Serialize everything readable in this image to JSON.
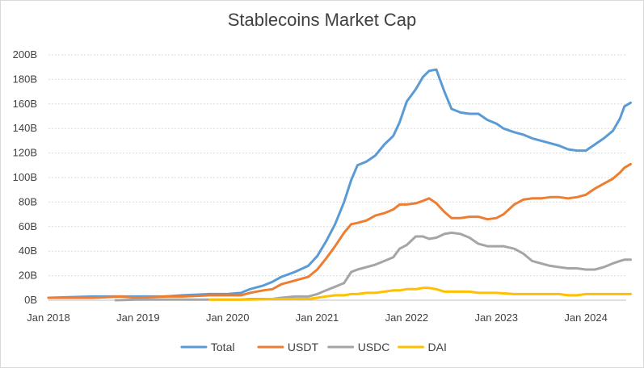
{
  "chart_data": {
    "type": "line",
    "title": "Stablecoins Market Cap",
    "xlabel": "",
    "ylabel": "",
    "ylim": [
      0,
      200
    ],
    "y_ticks": [
      "0B",
      "20B",
      "40B",
      "60B",
      "80B",
      "100B",
      "120B",
      "140B",
      "160B",
      "180B",
      "200B"
    ],
    "y_tick_values": [
      0,
      20,
      40,
      60,
      80,
      100,
      120,
      140,
      160,
      180,
      200
    ],
    "x_ticks": [
      "Jan 2018",
      "Jan 2019",
      "Jan 2020",
      "Jan 2021",
      "Jan 2022",
      "Jan 2023",
      "Jan 2024"
    ],
    "x_tick_values": [
      2018,
      2019,
      2020,
      2021,
      2022,
      2023,
      2024
    ],
    "xlim": [
      2018,
      2024.45
    ],
    "grid": true,
    "legend_position": "bottom",
    "series": [
      {
        "name": "Total",
        "color": "#5b9bd5",
        "points": [
          [
            2018.0,
            2
          ],
          [
            2018.5,
            3
          ],
          [
            2018.8,
            3
          ],
          [
            2019.0,
            3
          ],
          [
            2019.3,
            3
          ],
          [
            2019.5,
            4
          ],
          [
            2019.8,
            5
          ],
          [
            2020.0,
            5
          ],
          [
            2020.15,
            6
          ],
          [
            2020.25,
            9
          ],
          [
            2020.4,
            12
          ],
          [
            2020.5,
            15
          ],
          [
            2020.6,
            19
          ],
          [
            2020.75,
            23
          ],
          [
            2020.9,
            28
          ],
          [
            2021.0,
            36
          ],
          [
            2021.1,
            48
          ],
          [
            2021.2,
            62
          ],
          [
            2021.3,
            80
          ],
          [
            2021.38,
            98
          ],
          [
            2021.45,
            110
          ],
          [
            2021.55,
            113
          ],
          [
            2021.65,
            118
          ],
          [
            2021.75,
            127
          ],
          [
            2021.85,
            134
          ],
          [
            2021.92,
            145
          ],
          [
            2022.0,
            162
          ],
          [
            2022.1,
            172
          ],
          [
            2022.18,
            182
          ],
          [
            2022.25,
            187
          ],
          [
            2022.33,
            188
          ],
          [
            2022.42,
            170
          ],
          [
            2022.5,
            156
          ],
          [
            2022.6,
            153
          ],
          [
            2022.7,
            152
          ],
          [
            2022.8,
            152
          ],
          [
            2022.9,
            147
          ],
          [
            2023.0,
            144
          ],
          [
            2023.08,
            140
          ],
          [
            2023.2,
            137
          ],
          [
            2023.3,
            135
          ],
          [
            2023.4,
            132
          ],
          [
            2023.5,
            130
          ],
          [
            2023.6,
            128
          ],
          [
            2023.7,
            126
          ],
          [
            2023.8,
            123
          ],
          [
            2023.9,
            122
          ],
          [
            2024.0,
            122
          ],
          [
            2024.1,
            127
          ],
          [
            2024.2,
            132
          ],
          [
            2024.3,
            138
          ],
          [
            2024.38,
            148
          ],
          [
            2024.43,
            158
          ],
          [
            2024.5,
            161
          ]
        ]
      },
      {
        "name": "USDT",
        "color": "#ed7d31",
        "points": [
          [
            2018.0,
            2
          ],
          [
            2018.5,
            2
          ],
          [
            2018.8,
            3
          ],
          [
            2019.0,
            2
          ],
          [
            2019.3,
            3
          ],
          [
            2019.5,
            3
          ],
          [
            2019.8,
            4
          ],
          [
            2020.0,
            4
          ],
          [
            2020.15,
            4
          ],
          [
            2020.25,
            6
          ],
          [
            2020.4,
            8
          ],
          [
            2020.5,
            9
          ],
          [
            2020.6,
            13
          ],
          [
            2020.75,
            16
          ],
          [
            2020.9,
            19
          ],
          [
            2021.0,
            25
          ],
          [
            2021.1,
            34
          ],
          [
            2021.2,
            44
          ],
          [
            2021.3,
            55
          ],
          [
            2021.38,
            62
          ],
          [
            2021.45,
            63
          ],
          [
            2021.55,
            65
          ],
          [
            2021.65,
            69
          ],
          [
            2021.75,
            71
          ],
          [
            2021.85,
            74
          ],
          [
            2021.92,
            78
          ],
          [
            2022.0,
            78
          ],
          [
            2022.1,
            79
          ],
          [
            2022.18,
            81
          ],
          [
            2022.25,
            83
          ],
          [
            2022.33,
            79
          ],
          [
            2022.42,
            72
          ],
          [
            2022.5,
            67
          ],
          [
            2022.6,
            67
          ],
          [
            2022.7,
            68
          ],
          [
            2022.8,
            68
          ],
          [
            2022.9,
            66
          ],
          [
            2023.0,
            67
          ],
          [
            2023.08,
            70
          ],
          [
            2023.2,
            78
          ],
          [
            2023.3,
            82
          ],
          [
            2023.4,
            83
          ],
          [
            2023.5,
            83
          ],
          [
            2023.6,
            84
          ],
          [
            2023.7,
            84
          ],
          [
            2023.8,
            83
          ],
          [
            2023.9,
            84
          ],
          [
            2024.0,
            86
          ],
          [
            2024.1,
            91
          ],
          [
            2024.2,
            95
          ],
          [
            2024.3,
            99
          ],
          [
            2024.38,
            104
          ],
          [
            2024.43,
            108
          ],
          [
            2024.5,
            111
          ]
        ]
      },
      {
        "name": "USDC",
        "color": "#a5a5a5",
        "points": [
          [
            2018.75,
            0
          ],
          [
            2019.0,
            0.5
          ],
          [
            2019.3,
            0.5
          ],
          [
            2019.5,
            0.5
          ],
          [
            2019.8,
            0.5
          ],
          [
            2020.0,
            0.5
          ],
          [
            2020.15,
            0.5
          ],
          [
            2020.25,
            1
          ],
          [
            2020.4,
            1
          ],
          [
            2020.5,
            1
          ],
          [
            2020.6,
            2
          ],
          [
            2020.75,
            3
          ],
          [
            2020.9,
            3
          ],
          [
            2021.0,
            5
          ],
          [
            2021.1,
            8
          ],
          [
            2021.2,
            11
          ],
          [
            2021.3,
            14
          ],
          [
            2021.38,
            23
          ],
          [
            2021.45,
            25
          ],
          [
            2021.55,
            27
          ],
          [
            2021.65,
            29
          ],
          [
            2021.75,
            32
          ],
          [
            2021.85,
            35
          ],
          [
            2021.92,
            42
          ],
          [
            2022.0,
            45
          ],
          [
            2022.1,
            52
          ],
          [
            2022.18,
            52
          ],
          [
            2022.25,
            50
          ],
          [
            2022.33,
            51
          ],
          [
            2022.42,
            54
          ],
          [
            2022.5,
            55
          ],
          [
            2022.6,
            54
          ],
          [
            2022.7,
            51
          ],
          [
            2022.8,
            46
          ],
          [
            2022.9,
            44
          ],
          [
            2023.0,
            44
          ],
          [
            2023.08,
            44
          ],
          [
            2023.2,
            42
          ],
          [
            2023.3,
            38
          ],
          [
            2023.4,
            32
          ],
          [
            2023.5,
            30
          ],
          [
            2023.6,
            28
          ],
          [
            2023.7,
            27
          ],
          [
            2023.8,
            26
          ],
          [
            2023.9,
            26
          ],
          [
            2024.0,
            25
          ],
          [
            2024.1,
            25
          ],
          [
            2024.2,
            27
          ],
          [
            2024.3,
            30
          ],
          [
            2024.38,
            32
          ],
          [
            2024.43,
            33
          ],
          [
            2024.5,
            33
          ]
        ]
      },
      {
        "name": "DAI",
        "color": "#ffc000",
        "points": [
          [
            2019.8,
            0.5
          ],
          [
            2020.0,
            0.5
          ],
          [
            2020.25,
            0.5
          ],
          [
            2020.5,
            1
          ],
          [
            2020.75,
            1
          ],
          [
            2020.9,
            1
          ],
          [
            2021.0,
            2
          ],
          [
            2021.1,
            3
          ],
          [
            2021.2,
            4
          ],
          [
            2021.3,
            4
          ],
          [
            2021.38,
            5
          ],
          [
            2021.45,
            5
          ],
          [
            2021.55,
            6
          ],
          [
            2021.65,
            6
          ],
          [
            2021.75,
            7
          ],
          [
            2021.85,
            8
          ],
          [
            2021.92,
            8
          ],
          [
            2022.0,
            9
          ],
          [
            2022.1,
            9
          ],
          [
            2022.18,
            10
          ],
          [
            2022.25,
            10
          ],
          [
            2022.33,
            9
          ],
          [
            2022.42,
            7
          ],
          [
            2022.5,
            7
          ],
          [
            2022.6,
            7
          ],
          [
            2022.7,
            7
          ],
          [
            2022.8,
            6
          ],
          [
            2022.9,
            6
          ],
          [
            2023.0,
            6
          ],
          [
            2023.2,
            5
          ],
          [
            2023.3,
            5
          ],
          [
            2023.4,
            5
          ],
          [
            2023.5,
            5
          ],
          [
            2023.6,
            5
          ],
          [
            2023.7,
            5
          ],
          [
            2023.8,
            4
          ],
          [
            2023.9,
            4
          ],
          [
            2024.0,
            5
          ],
          [
            2024.1,
            5
          ],
          [
            2024.2,
            5
          ],
          [
            2024.3,
            5
          ],
          [
            2024.38,
            5
          ],
          [
            2024.43,
            5
          ],
          [
            2024.5,
            5
          ]
        ]
      }
    ]
  }
}
